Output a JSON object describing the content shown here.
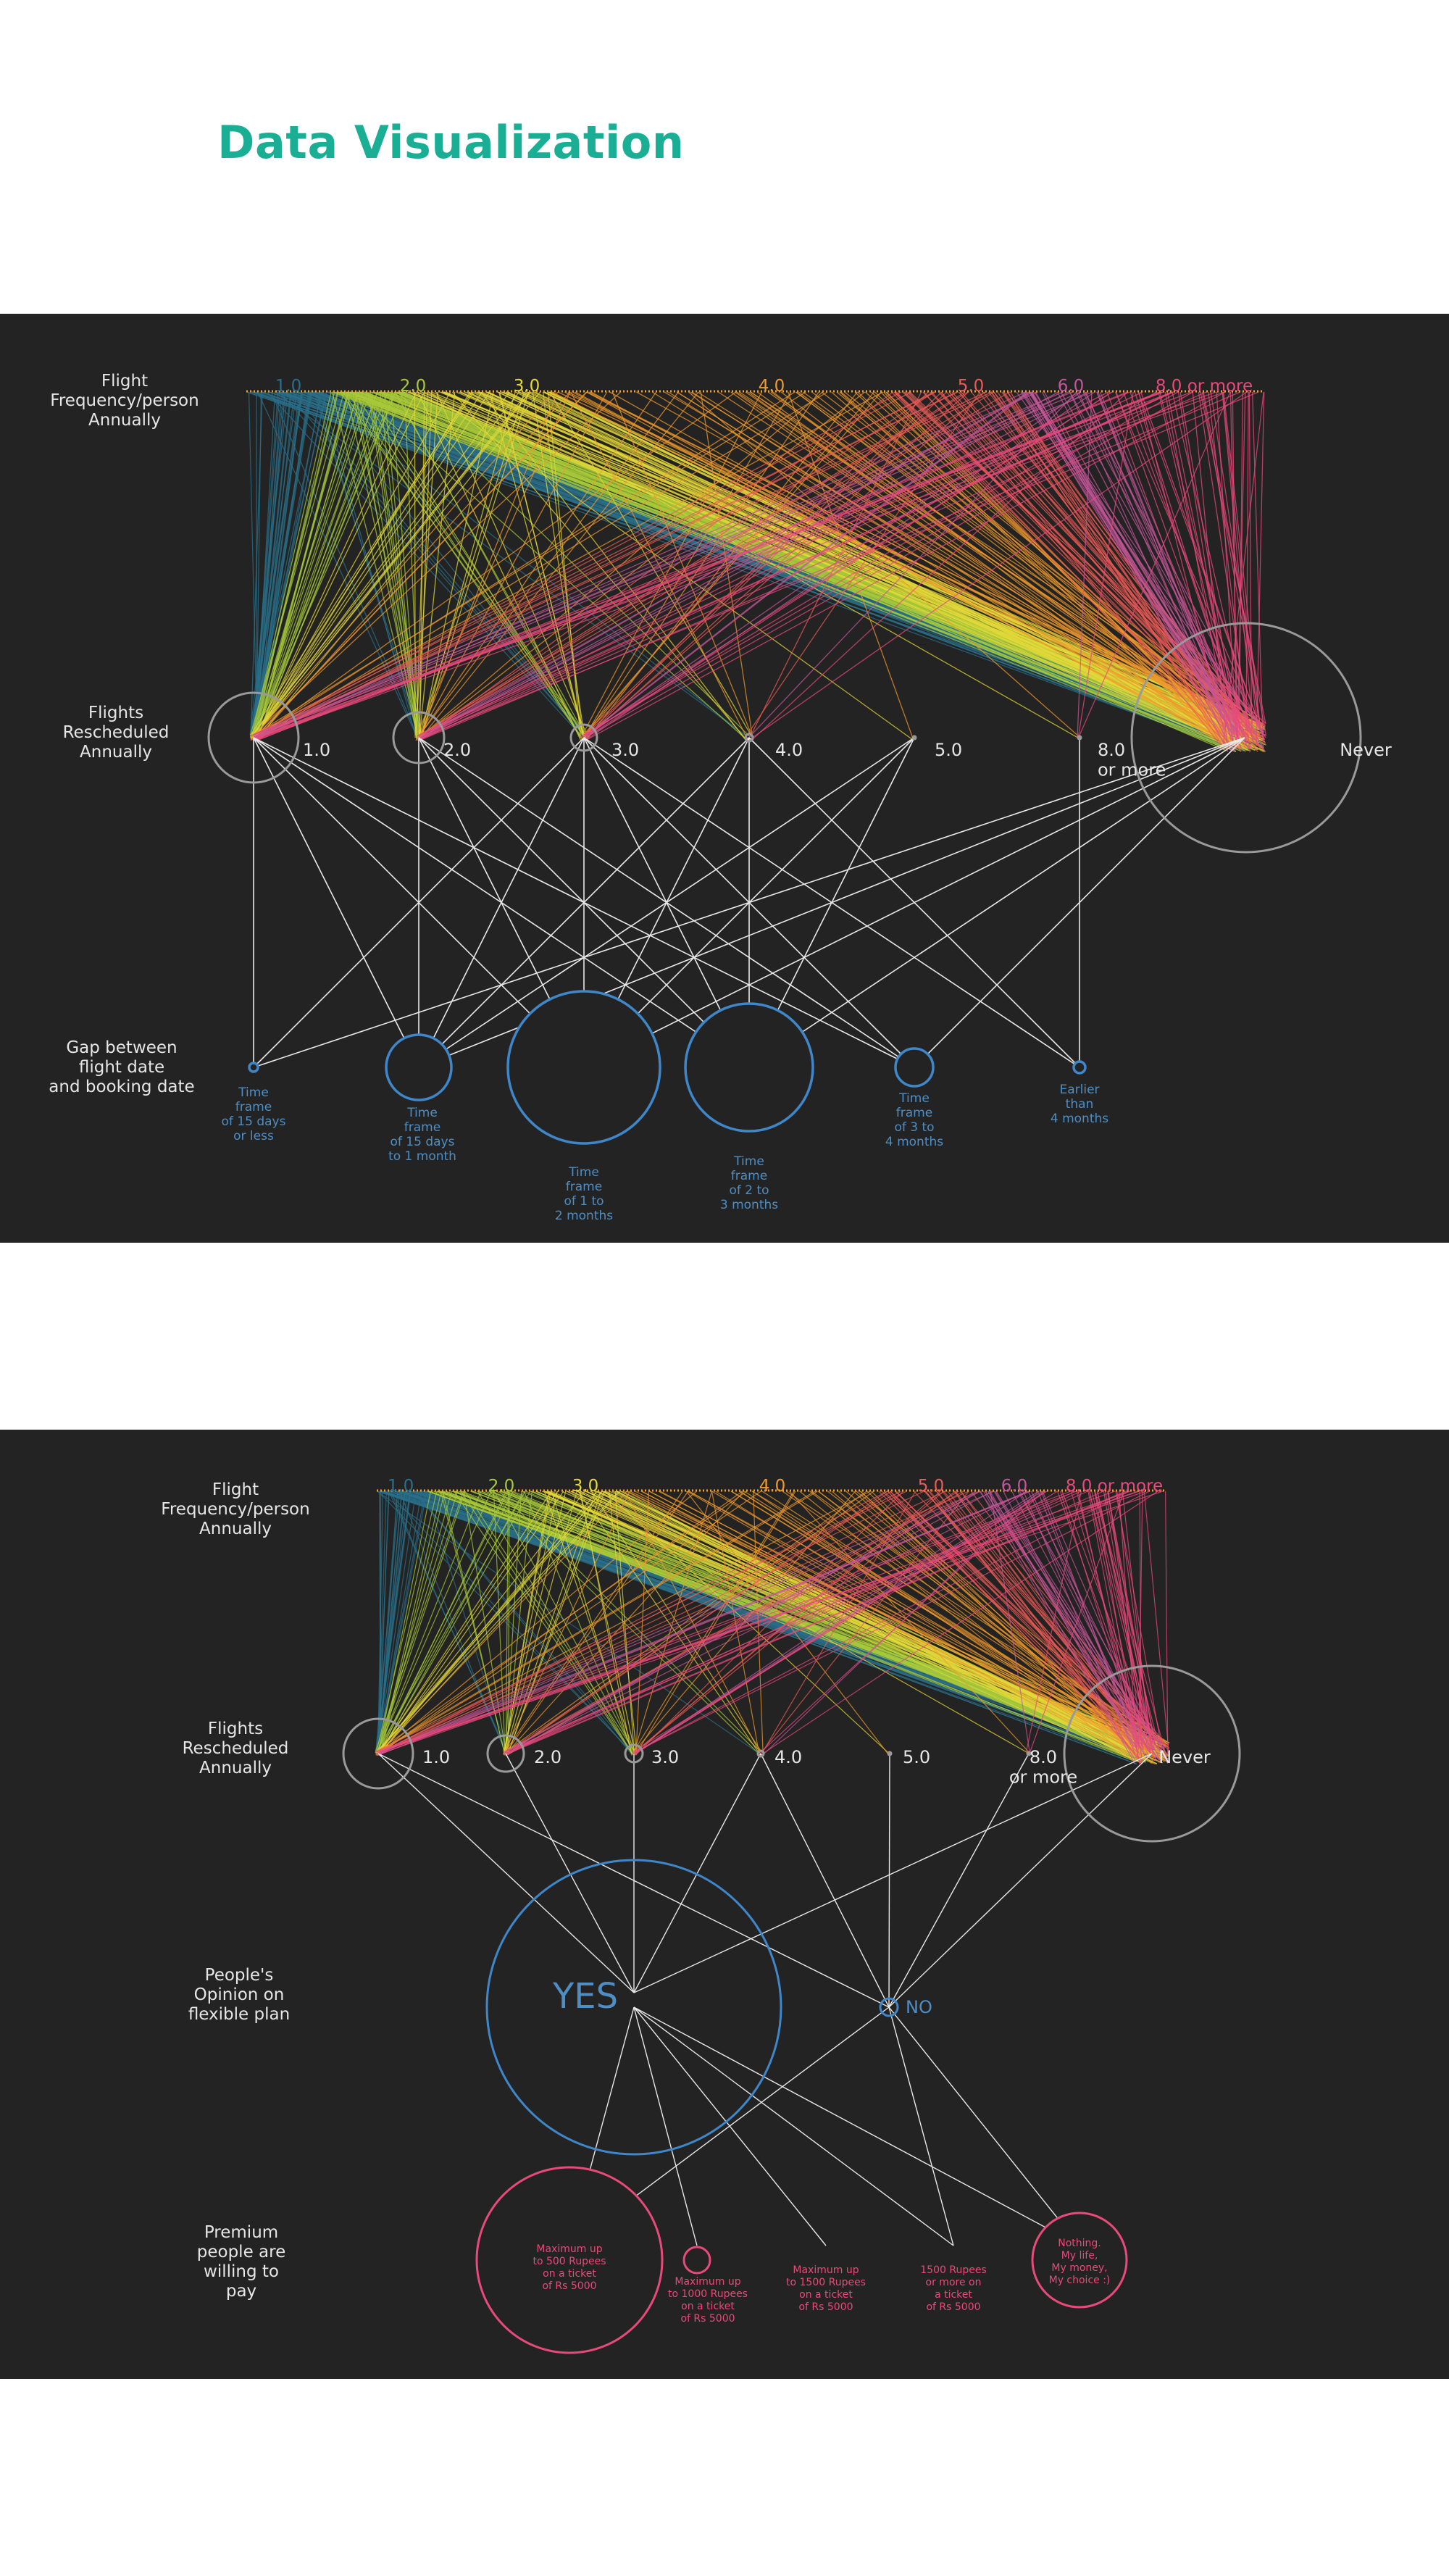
{
  "page": {
    "title": "Data Visualization"
  },
  "colors": {
    "title": "#1aaf95",
    "panel_bg": "#232323",
    "freq": [
      "#2a6f8a",
      "#a7c93a",
      "#e4d83a",
      "#f09a2c",
      "#ec5b55",
      "#c4579a",
      "#e84a7c"
    ]
  },
  "panel1": {
    "row_frequency": "Flight\nFrequency/person\nAnnually",
    "row_rescheduled": "Flights\nRescheduled\nAnnually",
    "row_gap": "Gap between\nflight date\nand booking date",
    "frequency_labels": [
      "1.0",
      "2.0",
      "3.0",
      "4.0",
      "5.0",
      "6.0",
      "8.0 or more"
    ],
    "rescheduled_labels": [
      "1.0",
      "2.0",
      "3.0",
      "4.0",
      "5.0",
      "8.0\nor more",
      "Never"
    ],
    "gap_labels": [
      "Time\nframe\nof 15 days\nor less",
      "Time\nframe\nof 15 days\nto 1 month",
      "Time\nframe\nof 1 to\n2 months",
      "Time\nframe\nof 2 to\n3 months",
      "Time\nframe\nof 3 to\n4 months",
      "Earlier\nthan\n4 months"
    ]
  },
  "panel2": {
    "row_frequency": "Flight\nFrequency/person\nAnnually",
    "row_rescheduled": "Flights\nRescheduled\nAnnually",
    "row_opinion": "People's\nOpinion on\nflexible plan",
    "row_premium": "Premium\npeople are\nwilling to\npay",
    "frequency_labels": [
      "1.0",
      "2.0",
      "3.0",
      "4.0",
      "5.0",
      "6.0",
      "8.0 or more"
    ],
    "rescheduled_labels": [
      "1.0",
      "2.0",
      "3.0",
      "4.0",
      "5.0",
      "8.0\nor more",
      "Never"
    ],
    "opinion_labels": [
      "YES",
      "NO"
    ],
    "premium_labels": [
      "Maximum up\nto 500 Rupees\non a ticket\nof Rs 5000",
      "Maximum up\nto 1000 Rupees\non a ticket\nof Rs 5000",
      "Maximum up\nto 1500 Rupees\non a ticket\nof Rs 5000",
      "1500 Rupees\nor more on\na ticket\nof Rs 5000",
      "Nothing.\nMy life,\nMy money,\nMy choice :)"
    ]
  }
}
